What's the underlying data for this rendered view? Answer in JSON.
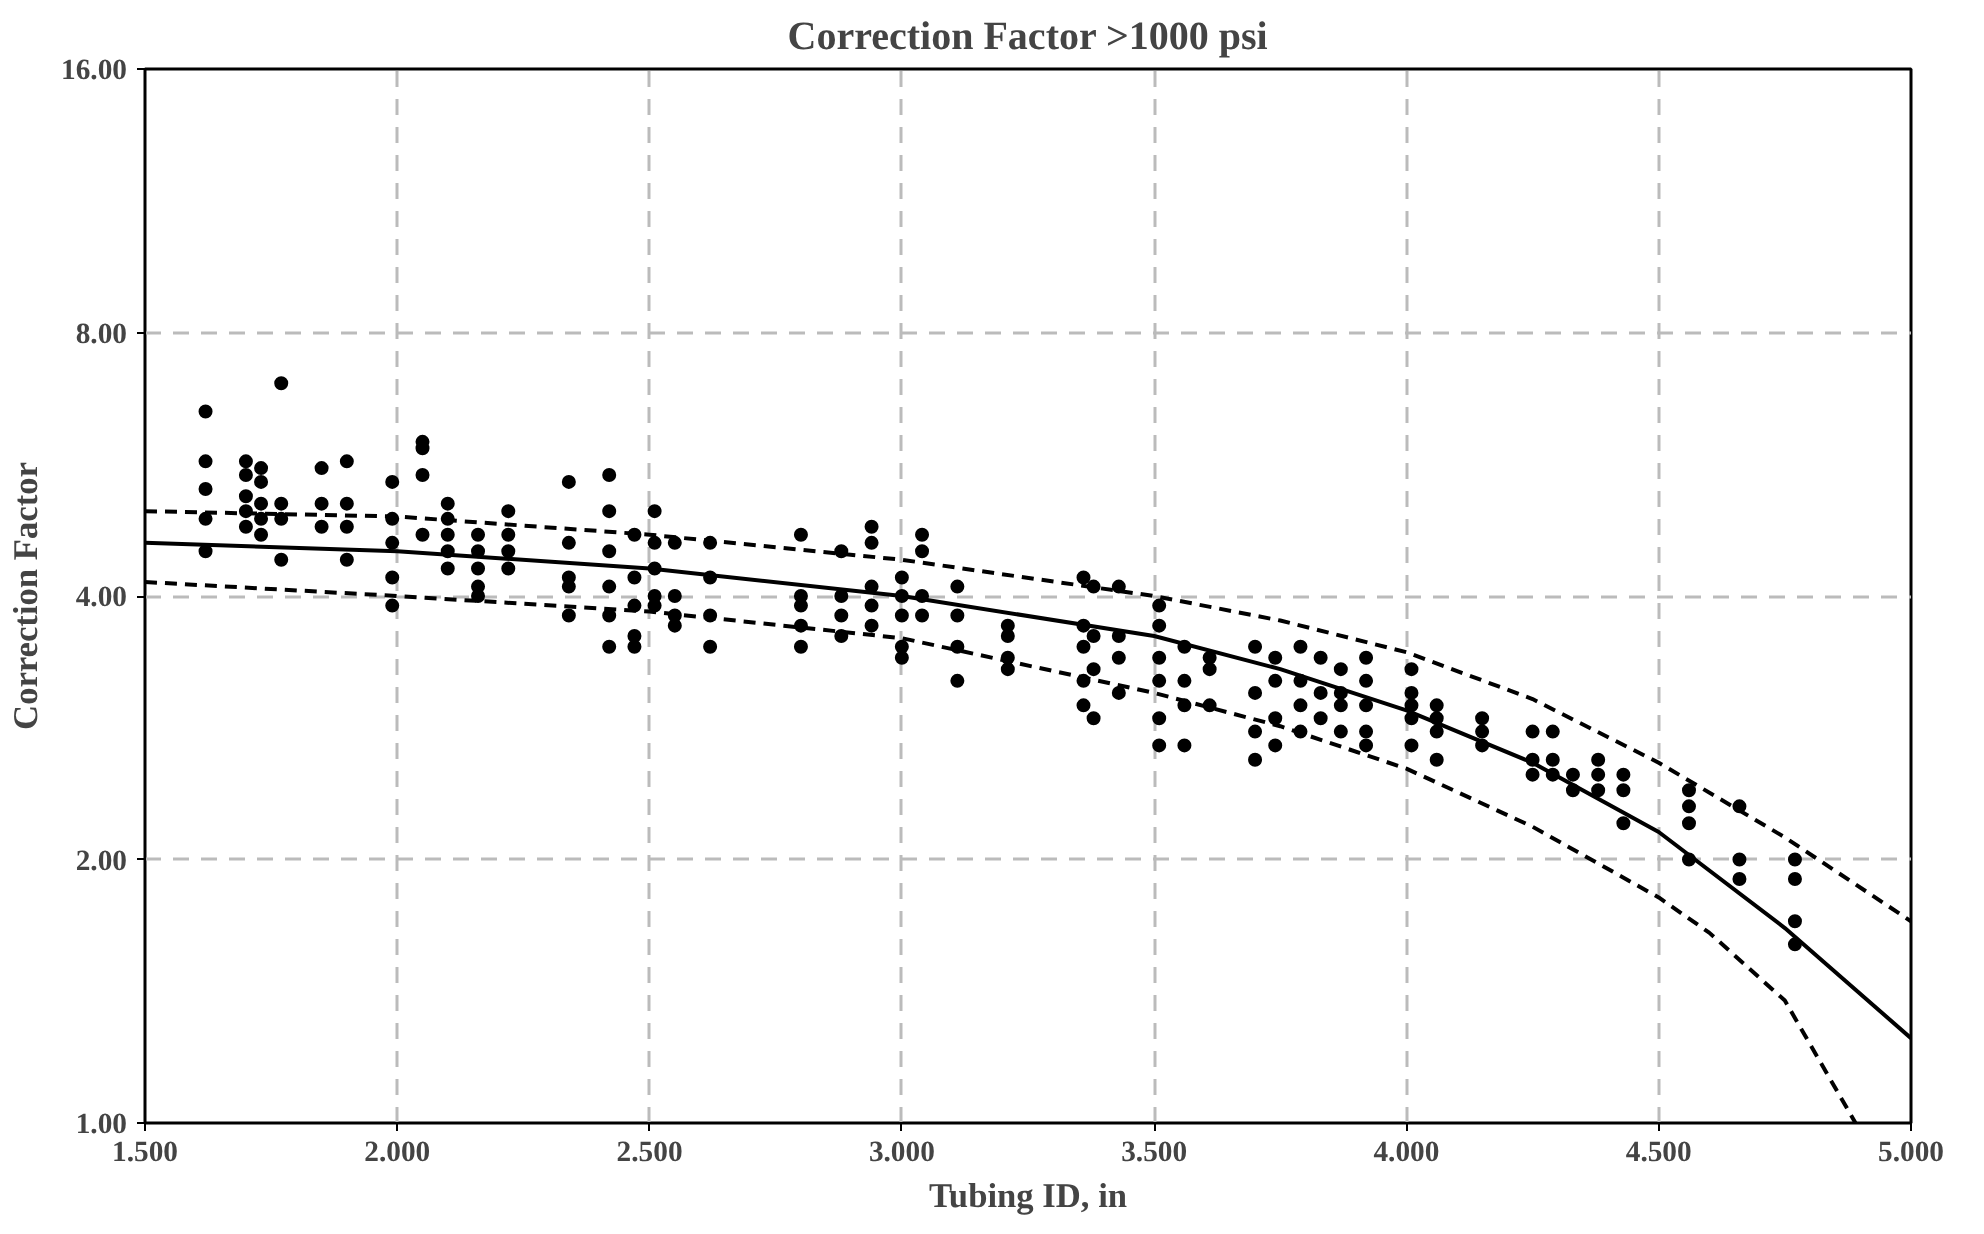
{
  "chart_data": {
    "type": "scatter",
    "title": "Correction Factor >1000 psi",
    "xlabel": "Tubing ID, in",
    "ylabel": "Correction Factor",
    "log": "y",
    "grid": true,
    "xlim": [
      1.5,
      5.0
    ],
    "ylim": [
      1,
      16
    ],
    "xticks": [
      {
        "value": 1.5,
        "label": "1.500"
      },
      {
        "value": 2.0,
        "label": "2.000"
      },
      {
        "value": 2.5,
        "label": "2.500"
      },
      {
        "value": 3.0,
        "label": "3.000"
      },
      {
        "value": 3.5,
        "label": "3.500"
      },
      {
        "value": 4.0,
        "label": "4.000"
      },
      {
        "value": 4.5,
        "label": "4.500"
      },
      {
        "value": 5.0,
        "label": "5.000"
      }
    ],
    "yticks": [
      {
        "value": 1,
        "label": "1.00"
      },
      {
        "value": 2,
        "label": "2.00"
      },
      {
        "value": 4,
        "label": "4.00"
      },
      {
        "value": 8,
        "label": "8.00"
      },
      {
        "value": 16,
        "label": "16.00"
      }
    ],
    "series": [
      {
        "marker": "circle",
        "color": "#000000",
        "x": [
          1.62,
          1.62,
          1.62,
          1.62,
          1.62,
          1.7,
          1.7,
          1.7,
          1.7,
          1.7,
          1.73,
          1.73,
          1.73,
          1.73,
          1.73,
          1.77,
          1.77,
          1.77,
          1.77,
          1.85,
          1.85,
          1.85,
          1.9,
          1.9,
          1.9,
          1.9,
          1.99,
          1.99,
          1.99,
          1.99,
          1.99,
          2.05,
          2.05,
          2.05,
          2.05,
          2.1,
          2.1,
          2.1,
          2.1,
          2.1,
          2.16,
          2.16,
          2.16,
          2.16,
          2.16,
          2.22,
          2.22,
          2.22,
          2.22,
          2.34,
          2.34,
          2.34,
          2.34,
          2.34,
          2.42,
          2.42,
          2.42,
          2.42,
          2.42,
          2.42,
          2.47,
          2.47,
          2.47,
          2.47,
          2.47,
          2.51,
          2.51,
          2.51,
          2.51,
          2.51,
          2.55,
          2.55,
          2.55,
          2.55,
          2.62,
          2.62,
          2.62,
          2.62,
          2.8,
          2.8,
          2.8,
          2.8,
          2.8,
          2.88,
          2.88,
          2.88,
          2.88,
          2.94,
          2.94,
          2.94,
          2.94,
          2.94,
          3.0,
          3.0,
          3.0,
          3.0,
          3.0,
          3.04,
          3.04,
          3.04,
          3.04,
          3.11,
          3.11,
          3.11,
          3.11,
          3.21,
          3.21,
          3.21,
          3.21,
          3.36,
          3.36,
          3.36,
          3.36,
          3.36,
          3.38,
          3.38,
          3.38,
          3.38,
          3.43,
          3.43,
          3.43,
          3.43,
          3.51,
          3.51,
          3.51,
          3.51,
          3.51,
          3.51,
          3.56,
          3.56,
          3.56,
          3.56,
          3.61,
          3.61,
          3.61,
          3.7,
          3.7,
          3.7,
          3.7,
          3.74,
          3.74,
          3.74,
          3.74,
          3.79,
          3.79,
          3.79,
          3.79,
          3.83,
          3.83,
          3.83,
          3.87,
          3.87,
          3.87,
          3.87,
          3.92,
          3.92,
          3.92,
          3.92,
          3.92,
          4.01,
          4.01,
          4.01,
          4.01,
          4.01,
          4.06,
          4.06,
          4.06,
          4.06,
          4.15,
          4.15,
          4.15,
          4.25,
          4.25,
          4.25,
          4.29,
          4.29,
          4.29,
          4.33,
          4.33,
          4.38,
          4.38,
          4.38,
          4.43,
          4.43,
          4.43,
          4.56,
          4.56,
          4.56,
          4.56,
          4.66,
          4.66,
          4.66,
          4.77,
          4.77,
          4.77,
          4.77
        ],
        "values": [
          6.5,
          5.7,
          5.3,
          4.9,
          4.5,
          5.7,
          5.5,
          5.2,
          5.0,
          4.8,
          5.6,
          5.4,
          5.1,
          4.9,
          4.7,
          7.0,
          5.1,
          4.9,
          4.4,
          5.6,
          5.1,
          4.8,
          5.7,
          5.1,
          4.8,
          4.4,
          5.4,
          4.9,
          4.6,
          4.2,
          3.9,
          6.0,
          5.9,
          5.5,
          4.7,
          5.1,
          4.9,
          4.7,
          4.5,
          4.3,
          4.7,
          4.5,
          4.3,
          4.1,
          4.0,
          5.0,
          4.7,
          4.5,
          4.3,
          5.4,
          4.6,
          4.2,
          4.1,
          3.8,
          5.5,
          5.0,
          4.5,
          4.1,
          3.8,
          3.5,
          4.7,
          4.2,
          3.9,
          3.6,
          3.5,
          5.0,
          4.6,
          4.3,
          4.0,
          3.9,
          4.6,
          4.0,
          3.8,
          3.7,
          4.6,
          4.2,
          3.8,
          3.5,
          4.7,
          4.0,
          3.9,
          3.7,
          3.5,
          4.5,
          4.0,
          3.8,
          3.6,
          4.8,
          4.6,
          4.1,
          3.9,
          3.7,
          4.2,
          4.0,
          3.8,
          3.5,
          3.4,
          4.7,
          4.5,
          4.0,
          3.8,
          4.1,
          3.8,
          3.5,
          3.2,
          3.7,
          3.6,
          3.4,
          3.3,
          4.2,
          3.7,
          3.5,
          3.2,
          3.0,
          4.1,
          3.6,
          3.3,
          2.9,
          4.1,
          3.6,
          3.4,
          3.1,
          3.9,
          3.7,
          3.4,
          3.2,
          2.9,
          2.7,
          3.5,
          3.2,
          3.0,
          2.7,
          3.4,
          3.3,
          3.0,
          3.5,
          3.1,
          2.8,
          2.6,
          3.4,
          3.2,
          2.9,
          2.7,
          3.5,
          3.2,
          3.0,
          2.8,
          3.4,
          3.1,
          2.9,
          3.3,
          3.1,
          3.0,
          2.8,
          3.4,
          3.2,
          3.0,
          2.8,
          2.7,
          3.3,
          3.1,
          3.0,
          2.9,
          2.7,
          3.0,
          2.9,
          2.8,
          2.6,
          2.9,
          2.8,
          2.7,
          2.8,
          2.6,
          2.5,
          2.8,
          2.6,
          2.5,
          2.5,
          2.4,
          2.6,
          2.5,
          2.4,
          2.5,
          2.4,
          2.2,
          2.4,
          2.3,
          2.2,
          2.0,
          2.3,
          2.0,
          1.9,
          2.0,
          1.9,
          1.7,
          1.6
        ]
      },
      {
        "type": "line",
        "marker": "none",
        "color": "#000000",
        "line_style": "solid",
        "x": [
          1.5,
          2.0,
          2.5,
          3.0,
          3.5,
          3.75,
          4.0,
          4.25,
          4.5,
          4.75,
          5.0
        ],
        "values": [
          4.6,
          4.5,
          4.3,
          4.0,
          3.6,
          3.3,
          2.96,
          2.58,
          2.15,
          1.67,
          1.25
        ]
      },
      {
        "type": "line",
        "marker": "none",
        "color": "#000000",
        "line_style": "dashed",
        "x": [
          1.5,
          2.0,
          2.5,
          3.0,
          3.5,
          3.75,
          4.0,
          4.25,
          4.5,
          4.75,
          5.0
        ],
        "values": [
          5.0,
          4.93,
          4.7,
          4.4,
          4.0,
          3.75,
          3.45,
          3.05,
          2.58,
          2.12,
          1.7
        ]
      },
      {
        "type": "line",
        "marker": "none",
        "color": "#000000",
        "line_style": "dashed",
        "x": [
          1.5,
          2.0,
          2.5,
          3.0,
          3.5,
          3.75,
          4.0,
          4.25,
          4.5,
          4.6,
          4.75,
          4.89
        ],
        "values": [
          4.15,
          4.0,
          3.84,
          3.58,
          3.1,
          2.84,
          2.54,
          2.18,
          1.81,
          1.65,
          1.38,
          1.0
        ]
      }
    ]
  }
}
